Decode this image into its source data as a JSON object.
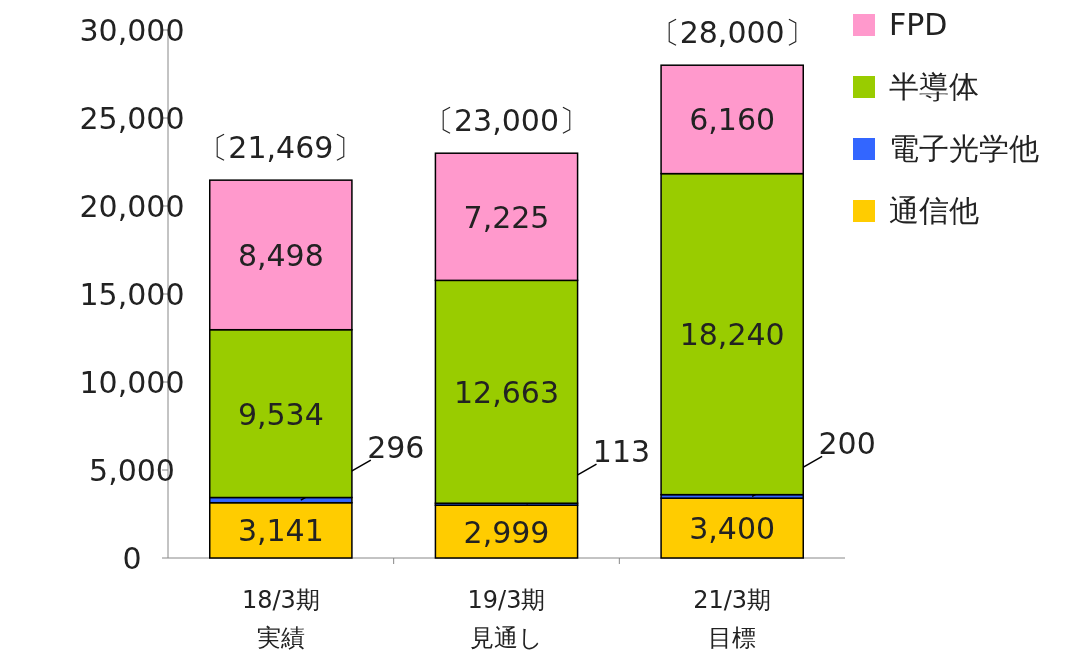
{
  "chart_data": {
    "type": "bar",
    "stacked": true,
    "categories": [
      "18/3期実績",
      "19/3期見通し",
      "21/3期目標"
    ],
    "series": [
      {
        "name": "通信他",
        "color": "#ffcc00",
        "values": [
          3141,
          2999,
          3400
        ],
        "value_labels": [
          "3,141",
          "2,999",
          "3,400"
        ]
      },
      {
        "name": "電子光学他",
        "color": "#3366ff",
        "values": [
          296,
          113,
          200
        ],
        "value_labels": [
          "296",
          "113",
          "200"
        ]
      },
      {
        "name": "半導体",
        "color": "#99cc00",
        "values": [
          9534,
          12663,
          18240
        ],
        "value_labels": [
          "9,534",
          "12,663",
          "18,240"
        ]
      },
      {
        "name": "FPD",
        "color": "#ff99cc",
        "values": [
          8498,
          7225,
          6160
        ],
        "value_labels": [
          "8,498",
          "7,225",
          "6,160"
        ]
      }
    ],
    "totals": [
      "〔21,469〕",
      "〔23,000〕",
      "〔28,000〕"
    ],
    "ylim": [
      0,
      30000
    ],
    "yticks": [
      0,
      {
        "value": 5000,
        "label": "5,000"
      },
      {
        "value": 10000,
        "label": "10,000"
      },
      {
        "value": 15000,
        "label": "15,000"
      },
      {
        "value": 20000,
        "label": "20,000"
      },
      {
        "value": 25000,
        "label": "25,000"
      },
      {
        "value": 30000,
        "label": "30,000"
      }
    ],
    "grid": false,
    "legend": "top right"
  }
}
